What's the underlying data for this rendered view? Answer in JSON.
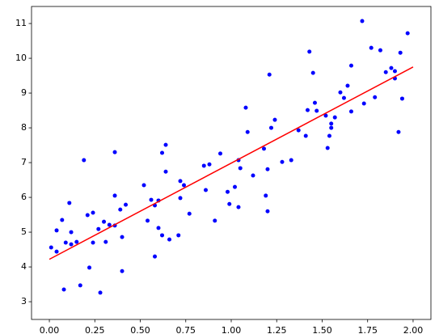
{
  "chart_data": {
    "type": "scatter",
    "xlim": [
      -0.098,
      2.098
    ],
    "ylim": [
      2.49,
      11.49
    ],
    "xticks": [
      {
        "value": 0,
        "label": "0.00"
      },
      {
        "value": 0.25,
        "label": "0.25"
      },
      {
        "value": 0.5,
        "label": "0.50"
      },
      {
        "value": 0.75,
        "label": "0.75"
      },
      {
        "value": 1,
        "label": "1.00"
      },
      {
        "value": 1.25,
        "label": "1.25"
      },
      {
        "value": 1.5,
        "label": "1.50"
      },
      {
        "value": 1.75,
        "label": "1.75"
      },
      {
        "value": 2,
        "label": "2.00"
      }
    ],
    "yticks": [
      3,
      4,
      5,
      6,
      7,
      8,
      9,
      10,
      11
    ],
    "series": [
      {
        "type": "scatter",
        "color": "#0000ff",
        "x": [
          0.01,
          0.04,
          0.04,
          0.07,
          0.08,
          0.09,
          0.11,
          0.12,
          0.12,
          0.15,
          0.17,
          0.19,
          0.21,
          0.22,
          0.24,
          0.24,
          0.27,
          0.28,
          0.3,
          0.31,
          0.33,
          0.36,
          0.36,
          0.36,
          0.39,
          0.4,
          0.4,
          0.42,
          0.52,
          0.54,
          0.56,
          0.58,
          0.58,
          0.6,
          0.6,
          0.62,
          0.62,
          0.64,
          0.64,
          0.66,
          0.71,
          0.72,
          0.72,
          0.74,
          0.77,
          0.85,
          0.86,
          0.88,
          0.91,
          0.94,
          0.98,
          0.99,
          1.02,
          1.04,
          1.04,
          1.05,
          1.08,
          1.09,
          1.12,
          1.18,
          1.19,
          1.2,
          1.2,
          1.21,
          1.22,
          1.24,
          1.28,
          1.33,
          1.37,
          1.41,
          1.42,
          1.43,
          1.45,
          1.46,
          1.47,
          1.52,
          1.53,
          1.54,
          1.55,
          1.55,
          1.57,
          1.6,
          1.62,
          1.64,
          1.66,
          1.66,
          1.72,
          1.73,
          1.77,
          1.79,
          1.82,
          1.85,
          1.88,
          1.9,
          1.9,
          1.93,
          1.92,
          1.94,
          1.97
        ],
        "values": [
          4.56,
          5.05,
          4.44,
          5.35,
          3.35,
          4.7,
          5.84,
          5.0,
          4.65,
          4.72,
          3.47,
          7.07,
          5.49,
          3.98,
          5.56,
          4.7,
          5.09,
          3.26,
          5.3,
          4.72,
          5.21,
          5.19,
          6.05,
          7.3,
          5.65,
          4.86,
          3.88,
          5.79,
          6.35,
          5.33,
          5.93,
          4.3,
          5.77,
          5.91,
          5.12,
          7.28,
          4.91,
          7.51,
          6.74,
          4.79,
          4.91,
          6.47,
          5.98,
          6.35,
          5.53,
          6.91,
          6.21,
          6.95,
          5.33,
          7.26,
          6.16,
          5.81,
          6.3,
          5.72,
          7.07,
          6.84,
          8.58,
          7.88,
          6.63,
          7.4,
          6.05,
          5.6,
          6.81,
          9.53,
          8.0,
          8.23,
          7.02,
          7.07,
          7.93,
          7.77,
          8.51,
          10.19,
          9.58,
          8.72,
          8.49,
          8.35,
          7.42,
          7.77,
          8.0,
          8.12,
          8.3,
          9.02,
          8.86,
          9.21,
          9.79,
          8.47,
          11.07,
          8.7,
          10.3,
          8.88,
          10.23,
          9.6,
          9.72,
          9.63,
          9.42,
          10.16,
          7.88,
          8.84,
          10.72
        ]
      },
      {
        "type": "line",
        "color": "#ff0000",
        "x": [
          0,
          2
        ],
        "values": [
          4.22,
          9.75
        ]
      }
    ]
  }
}
